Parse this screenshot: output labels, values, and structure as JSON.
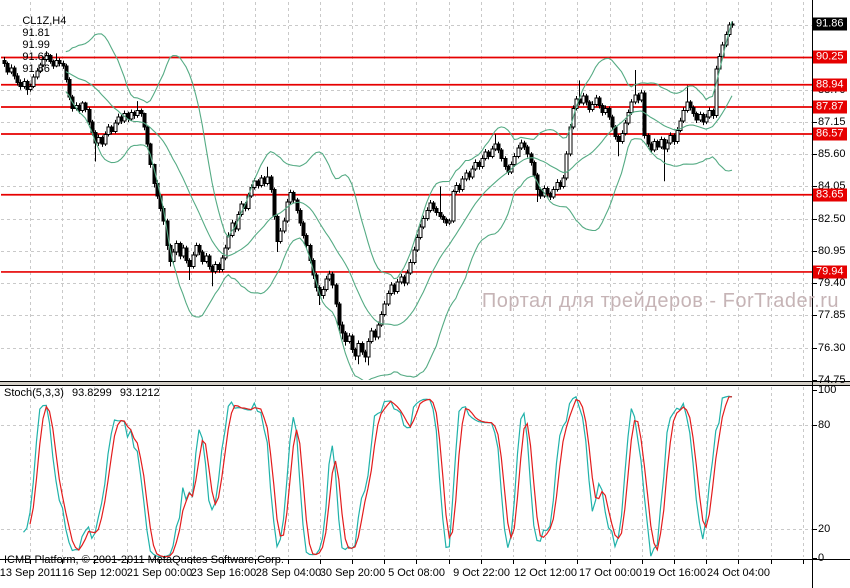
{
  "header": {
    "symbol_period": "CL1Z,H4",
    "open": "91.81",
    "high": "91.99",
    "low": "91.68",
    "close": "91.86"
  },
  "watermark": {
    "text": "Портал для трейдеров - ForTrader.ru"
  },
  "footer": {
    "copyright": "ICMB Platform, © 2001-2011 MetaQuotes Software Corp."
  },
  "colors": {
    "background": "#ffffff",
    "grid": "#c9c9c9",
    "candle_outline": "#000000",
    "candle_up_fill": "#ffffff",
    "candle_down_fill": "#000000",
    "bollinger": "#55ab84",
    "stoch_main": "#20b2aa",
    "stoch_signal": "#e31c1c",
    "level_line": "#e60000",
    "level_tag_bg": "#e60000",
    "price_tag_bg": "#000000",
    "tag_text": "#ffffff",
    "separator": "#d4d0c8",
    "axis_text": "#000000",
    "watermark": "#c6b4b6"
  },
  "chart_data": {
    "type": "candlestick",
    "symbol": "CL1Z",
    "timeframe": "H4",
    "current_price": "91.86",
    "price_axis": {
      "min": 74.75,
      "max": 91.8,
      "step": 1.55,
      "visible_labels": [
        "88.70",
        "87.15",
        "85.60",
        "84.05",
        "82.50",
        "80.95",
        "79.40",
        "77.85",
        "76.30",
        "74.75"
      ]
    },
    "red_levels": [
      "90.25",
      "88.94",
      "87.87",
      "86.57",
      "83.65",
      "79.94"
    ],
    "time_labels": [
      "13 Sep 2011",
      "16 Sep 12:00",
      "21 Sep 00:00",
      "23 Sep 16:00",
      "28 Sep 04:00",
      "30 Sep 20:00",
      "5 Oct 08:00",
      "9 Oct 22:00",
      "12 Oct 12:00",
      "17 Oct 00:00",
      "19 Oct 16:00",
      "24 Oct 04:00"
    ],
    "bollinger": {
      "period": 20,
      "deviation": 2
    },
    "stochastic": {
      "name": "Stoch(5,3,3)",
      "main_value": "93.8299",
      "signal_value": "93.1212",
      "k_period": 5,
      "d_period": 3,
      "slowing": 3,
      "dashed_levels": [
        80,
        20
      ],
      "axis_labels": [
        {
          "v": 100,
          "t": "100"
        },
        {
          "v": 80,
          "t": "80"
        },
        {
          "v": 20,
          "t": "20"
        },
        {
          "v": 0,
          "t": "0"
        }
      ]
    },
    "candles_ohlc": [
      [
        90.1,
        90.28,
        89.8,
        89.95
      ],
      [
        89.95,
        90.05,
        89.42,
        89.55
      ],
      [
        89.55,
        89.92,
        89.45,
        89.75
      ],
      [
        89.75,
        89.85,
        89.2,
        89.35
      ],
      [
        89.35,
        89.5,
        88.9,
        89.05
      ],
      [
        89.05,
        89.2,
        88.7,
        88.85
      ],
      [
        88.85,
        89.25,
        88.75,
        89.1
      ],
      [
        89.1,
        89.18,
        88.45,
        88.7
      ],
      [
        88.7,
        89.0,
        88.6,
        88.85
      ],
      [
        88.85,
        89.45,
        88.78,
        89.3
      ],
      [
        89.3,
        89.75,
        89.2,
        89.6
      ],
      [
        89.6,
        90.0,
        89.5,
        89.9
      ],
      [
        89.9,
        90.3,
        89.8,
        90.15
      ],
      [
        90.15,
        90.55,
        90.05,
        90.35
      ],
      [
        90.35,
        90.42,
        89.95,
        90.05
      ],
      [
        90.05,
        90.15,
        89.7,
        89.85
      ],
      [
        89.85,
        90.45,
        89.78,
        90.1
      ],
      [
        90.1,
        90.22,
        89.82,
        89.95
      ],
      [
        89.95,
        90.1,
        89.7,
        89.85
      ],
      [
        89.85,
        89.95,
        89.05,
        89.2
      ],
      [
        89.2,
        89.3,
        88.2,
        88.35
      ],
      [
        88.35,
        88.45,
        87.65,
        87.8
      ],
      [
        87.8,
        88.1,
        87.7,
        87.95
      ],
      [
        87.95,
        88.05,
        87.55,
        87.7
      ],
      [
        87.7,
        88.15,
        87.6,
        88.05
      ],
      [
        88.05,
        88.12,
        87.62,
        87.75
      ],
      [
        87.75,
        87.85,
        87.0,
        87.15
      ],
      [
        87.15,
        87.25,
        86.5,
        86.65
      ],
      [
        86.65,
        86.75,
        85.25,
        86.15
      ],
      [
        86.15,
        86.55,
        86.0,
        86.4
      ],
      [
        86.4,
        86.5,
        85.95,
        86.1
      ],
      [
        86.1,
        86.7,
        86.0,
        86.55
      ],
      [
        86.55,
        87.05,
        86.45,
        86.9
      ],
      [
        86.9,
        87.0,
        86.55,
        86.7
      ],
      [
        86.7,
        87.25,
        86.6,
        87.1
      ],
      [
        87.1,
        87.55,
        87.0,
        87.4
      ],
      [
        87.4,
        87.5,
        87.05,
        87.2
      ],
      [
        87.2,
        87.7,
        87.1,
        87.55
      ],
      [
        87.55,
        87.65,
        87.15,
        87.3
      ],
      [
        87.3,
        87.75,
        87.2,
        87.6
      ],
      [
        87.6,
        87.7,
        87.3,
        87.45
      ],
      [
        87.45,
        88.15,
        87.35,
        87.7
      ],
      [
        87.7,
        87.8,
        87.4,
        87.55
      ],
      [
        87.55,
        87.6,
        86.75,
        86.9
      ],
      [
        86.9,
        86.95,
        85.95,
        86.1
      ],
      [
        86.1,
        86.15,
        84.95,
        85.1
      ],
      [
        85.1,
        85.15,
        84.0,
        84.2
      ],
      [
        84.2,
        84.35,
        83.45,
        83.6
      ],
      [
        83.6,
        83.7,
        82.85,
        83.0
      ],
      [
        83.0,
        83.1,
        82.2,
        82.4
      ],
      [
        82.4,
        82.5,
        81.0,
        81.2
      ],
      [
        81.2,
        81.3,
        80.2,
        80.45
      ],
      [
        80.45,
        81.05,
        80.3,
        80.9
      ],
      [
        80.9,
        81.45,
        80.75,
        81.3
      ],
      [
        81.3,
        81.4,
        80.55,
        80.7
      ],
      [
        80.7,
        81.25,
        80.6,
        81.1
      ],
      [
        81.1,
        81.2,
        80.35,
        80.5
      ],
      [
        80.5,
        80.6,
        79.55,
        80.2
      ],
      [
        80.2,
        80.9,
        80.1,
        80.75
      ],
      [
        80.75,
        81.35,
        80.65,
        81.2
      ],
      [
        81.2,
        81.3,
        80.75,
        80.9
      ],
      [
        80.9,
        81.0,
        80.3,
        80.45
      ],
      [
        80.45,
        80.85,
        80.35,
        80.7
      ],
      [
        80.7,
        80.8,
        80.05,
        80.2
      ],
      [
        80.2,
        80.3,
        79.25,
        79.95
      ],
      [
        79.95,
        80.45,
        79.85,
        80.3
      ],
      [
        80.3,
        80.4,
        79.9,
        80.05
      ],
      [
        80.05,
        80.75,
        79.95,
        80.6
      ],
      [
        80.6,
        81.25,
        80.5,
        81.1
      ],
      [
        81.1,
        81.85,
        81.0,
        81.7
      ],
      [
        81.7,
        82.45,
        81.6,
        82.3
      ],
      [
        82.3,
        82.4,
        81.85,
        82.0
      ],
      [
        82.0,
        82.85,
        81.9,
        82.7
      ],
      [
        82.7,
        83.35,
        82.6,
        83.2
      ],
      [
        83.2,
        83.3,
        82.85,
        83.0
      ],
      [
        83.0,
        83.75,
        82.9,
        83.6
      ],
      [
        83.6,
        84.15,
        83.5,
        84.0
      ],
      [
        84.0,
        84.45,
        83.9,
        84.3
      ],
      [
        84.3,
        84.4,
        83.95,
        84.1
      ],
      [
        84.1,
        84.6,
        84.0,
        84.45
      ],
      [
        84.45,
        84.55,
        84.05,
        84.2
      ],
      [
        84.2,
        85.0,
        84.1,
        84.5
      ],
      [
        84.5,
        84.6,
        83.75,
        83.9
      ],
      [
        83.9,
        84.0,
        82.45,
        82.6
      ],
      [
        82.6,
        82.7,
        80.9,
        81.4
      ],
      [
        81.4,
        82.05,
        81.3,
        81.9
      ],
      [
        81.9,
        82.55,
        81.8,
        82.4
      ],
      [
        82.4,
        83.45,
        82.3,
        83.3
      ],
      [
        83.3,
        83.9,
        83.2,
        83.75
      ],
      [
        83.75,
        83.85,
        83.25,
        83.4
      ],
      [
        83.4,
        83.5,
        82.75,
        82.9
      ],
      [
        82.9,
        83.0,
        82.15,
        82.3
      ],
      [
        82.3,
        82.4,
        81.55,
        81.7
      ],
      [
        81.7,
        81.8,
        81.05,
        81.2
      ],
      [
        81.2,
        81.3,
        80.35,
        80.5
      ],
      [
        80.5,
        80.6,
        79.6,
        79.8
      ],
      [
        79.8,
        79.9,
        79.0,
        79.2
      ],
      [
        79.2,
        79.3,
        78.35,
        78.8
      ],
      [
        78.8,
        79.25,
        78.65,
        79.1
      ],
      [
        79.1,
        79.75,
        79.0,
        79.6
      ],
      [
        79.6,
        80.0,
        79.5,
        79.85
      ],
      [
        79.85,
        79.95,
        79.15,
        79.3
      ],
      [
        79.3,
        79.4,
        78.25,
        78.4
      ],
      [
        78.4,
        78.5,
        77.1,
        77.4
      ],
      [
        77.4,
        77.55,
        76.7,
        77.0
      ],
      [
        77.0,
        77.1,
        76.4,
        76.6
      ],
      [
        76.6,
        77.0,
        76.5,
        76.85
      ],
      [
        76.85,
        76.95,
        76.05,
        76.2
      ],
      [
        76.2,
        76.3,
        75.7,
        75.9
      ],
      [
        75.9,
        76.65,
        75.5,
        76.5
      ],
      [
        76.5,
        76.6,
        75.95,
        76.1
      ],
      [
        76.1,
        76.2,
        75.6,
        75.85
      ],
      [
        75.85,
        76.75,
        75.45,
        76.6
      ],
      [
        76.6,
        77.25,
        76.5,
        77.1
      ],
      [
        77.1,
        77.2,
        76.65,
        76.8
      ],
      [
        76.8,
        77.55,
        76.7,
        77.4
      ],
      [
        77.4,
        78.05,
        77.3,
        77.9
      ],
      [
        77.9,
        78.55,
        77.8,
        78.4
      ],
      [
        78.4,
        79.05,
        78.3,
        78.9
      ],
      [
        78.9,
        79.45,
        78.8,
        79.3
      ],
      [
        79.3,
        79.4,
        78.85,
        79.0
      ],
      [
        79.0,
        79.6,
        78.9,
        79.45
      ],
      [
        79.45,
        79.85,
        79.35,
        79.7
      ],
      [
        79.7,
        79.8,
        79.25,
        79.4
      ],
      [
        79.4,
        80.05,
        79.3,
        79.9
      ],
      [
        79.9,
        80.55,
        79.8,
        80.4
      ],
      [
        80.4,
        81.15,
        80.3,
        81.0
      ],
      [
        81.0,
        81.75,
        80.9,
        81.6
      ],
      [
        81.6,
        82.25,
        81.5,
        82.1
      ],
      [
        82.1,
        82.65,
        82.0,
        82.5
      ],
      [
        82.5,
        83.05,
        82.4,
        82.9
      ],
      [
        82.9,
        83.4,
        82.8,
        83.25
      ],
      [
        83.25,
        83.35,
        82.85,
        83.0
      ],
      [
        83.0,
        83.1,
        82.65,
        82.8
      ],
      [
        82.8,
        84.05,
        82.5,
        82.6
      ],
      [
        82.6,
        82.7,
        82.3,
        82.45
      ],
      [
        82.45,
        82.55,
        82.15,
        82.3
      ],
      [
        82.3,
        82.5,
        82.2,
        82.4
      ],
      [
        82.4,
        83.9,
        82.3,
        83.8
      ],
      [
        83.8,
        84.25,
        83.7,
        84.1
      ],
      [
        84.1,
        84.2,
        83.75,
        83.9
      ],
      [
        83.9,
        84.55,
        83.8,
        84.4
      ],
      [
        84.4,
        84.85,
        84.3,
        84.7
      ],
      [
        84.7,
        84.8,
        84.35,
        84.5
      ],
      [
        84.5,
        85.05,
        84.4,
        84.9
      ],
      [
        84.9,
        85.35,
        84.8,
        85.2
      ],
      [
        85.2,
        85.3,
        84.85,
        85.0
      ],
      [
        85.0,
        85.55,
        84.9,
        85.4
      ],
      [
        85.4,
        85.85,
        85.3,
        85.7
      ],
      [
        85.7,
        85.8,
        85.35,
        85.5
      ],
      [
        85.5,
        86.0,
        85.4,
        85.85
      ],
      [
        85.85,
        86.55,
        85.75,
        86.1
      ],
      [
        86.1,
        86.2,
        85.65,
        85.8
      ],
      [
        85.8,
        85.9,
        85.25,
        85.4
      ],
      [
        85.4,
        85.5,
        84.85,
        85.0
      ],
      [
        85.0,
        85.1,
        84.6,
        84.75
      ],
      [
        84.75,
        85.25,
        84.65,
        85.1
      ],
      [
        85.1,
        85.65,
        85.0,
        85.5
      ],
      [
        85.5,
        86.05,
        85.4,
        85.9
      ],
      [
        85.9,
        86.3,
        85.8,
        86.15
      ],
      [
        86.15,
        86.25,
        85.8,
        85.95
      ],
      [
        85.95,
        86.05,
        85.45,
        85.6
      ],
      [
        85.6,
        85.7,
        85.05,
        85.2
      ],
      [
        85.2,
        85.3,
        84.45,
        84.6
      ],
      [
        84.6,
        84.7,
        83.3,
        83.9
      ],
      [
        83.9,
        84.0,
        83.45,
        83.6
      ],
      [
        83.6,
        84.1,
        83.5,
        83.95
      ],
      [
        83.95,
        84.05,
        83.55,
        83.7
      ],
      [
        83.7,
        83.8,
        83.4,
        83.55
      ],
      [
        83.55,
        84.05,
        83.45,
        83.9
      ],
      [
        83.9,
        84.4,
        83.8,
        84.25
      ],
      [
        84.25,
        84.35,
        83.9,
        84.05
      ],
      [
        84.05,
        84.6,
        83.95,
        84.45
      ],
      [
        84.45,
        85.75,
        84.35,
        85.6
      ],
      [
        85.6,
        87.05,
        85.5,
        86.9
      ],
      [
        86.9,
        87.95,
        86.8,
        87.8
      ],
      [
        87.8,
        88.4,
        87.7,
        88.25
      ],
      [
        88.25,
        89.15,
        87.95,
        88.05
      ],
      [
        88.05,
        88.55,
        87.95,
        88.4
      ],
      [
        88.4,
        88.5,
        87.95,
        88.1
      ],
      [
        88.1,
        88.2,
        87.6,
        87.75
      ],
      [
        87.75,
        88.15,
        87.65,
        88.0
      ],
      [
        88.0,
        88.45,
        87.9,
        88.3
      ],
      [
        88.3,
        88.4,
        87.8,
        87.95
      ],
      [
        87.95,
        88.05,
        87.45,
        87.6
      ],
      [
        87.6,
        87.95,
        87.5,
        87.8
      ],
      [
        87.8,
        87.9,
        87.25,
        87.4
      ],
      [
        87.4,
        87.5,
        86.75,
        86.9
      ],
      [
        86.9,
        87.0,
        86.3,
        86.45
      ],
      [
        86.45,
        86.55,
        85.5,
        86.2
      ],
      [
        86.2,
        86.75,
        86.1,
        86.6
      ],
      [
        86.6,
        87.25,
        86.5,
        87.1
      ],
      [
        87.1,
        87.75,
        87.0,
        87.6
      ],
      [
        87.6,
        88.25,
        87.5,
        88.1
      ],
      [
        88.1,
        89.65,
        88.0,
        88.45
      ],
      [
        88.45,
        88.55,
        88.05,
        88.2
      ],
      [
        88.2,
        88.7,
        88.1,
        88.55
      ],
      [
        88.55,
        88.65,
        86.35,
        86.5
      ],
      [
        86.5,
        86.6,
        85.95,
        86.1
      ],
      [
        86.1,
        86.2,
        85.65,
        85.8
      ],
      [
        85.8,
        86.35,
        85.7,
        86.2
      ],
      [
        86.2,
        86.3,
        85.8,
        85.95
      ],
      [
        85.95,
        86.45,
        85.85,
        86.3
      ],
      [
        86.3,
        86.4,
        84.3,
        85.85
      ],
      [
        85.85,
        86.3,
        85.7,
        86.15
      ],
      [
        86.15,
        86.65,
        86.05,
        86.5
      ],
      [
        86.5,
        86.6,
        86.05,
        86.2
      ],
      [
        86.2,
        86.9,
        86.1,
        86.75
      ],
      [
        86.75,
        87.35,
        86.65,
        87.2
      ],
      [
        87.2,
        87.85,
        87.1,
        87.7
      ],
      [
        87.7,
        88.9,
        87.6,
        88.1
      ],
      [
        88.1,
        88.2,
        87.7,
        87.85
      ],
      [
        87.85,
        87.95,
        87.4,
        87.55
      ],
      [
        87.55,
        87.65,
        87.1,
        87.25
      ],
      [
        87.25,
        87.65,
        87.15,
        87.5
      ],
      [
        87.5,
        87.6,
        87.0,
        87.15
      ],
      [
        87.15,
        87.55,
        87.05,
        87.4
      ],
      [
        87.4,
        87.85,
        87.3,
        87.7
      ],
      [
        87.7,
        87.8,
        87.3,
        87.45
      ],
      [
        87.45,
        89.85,
        87.35,
        89.7
      ],
      [
        89.7,
        90.45,
        89.6,
        90.3
      ],
      [
        90.3,
        91.0,
        90.2,
        90.85
      ],
      [
        90.85,
        91.5,
        90.75,
        91.35
      ],
      [
        91.35,
        91.95,
        91.25,
        91.81
      ],
      [
        91.81,
        91.99,
        91.68,
        91.86
      ]
    ]
  }
}
